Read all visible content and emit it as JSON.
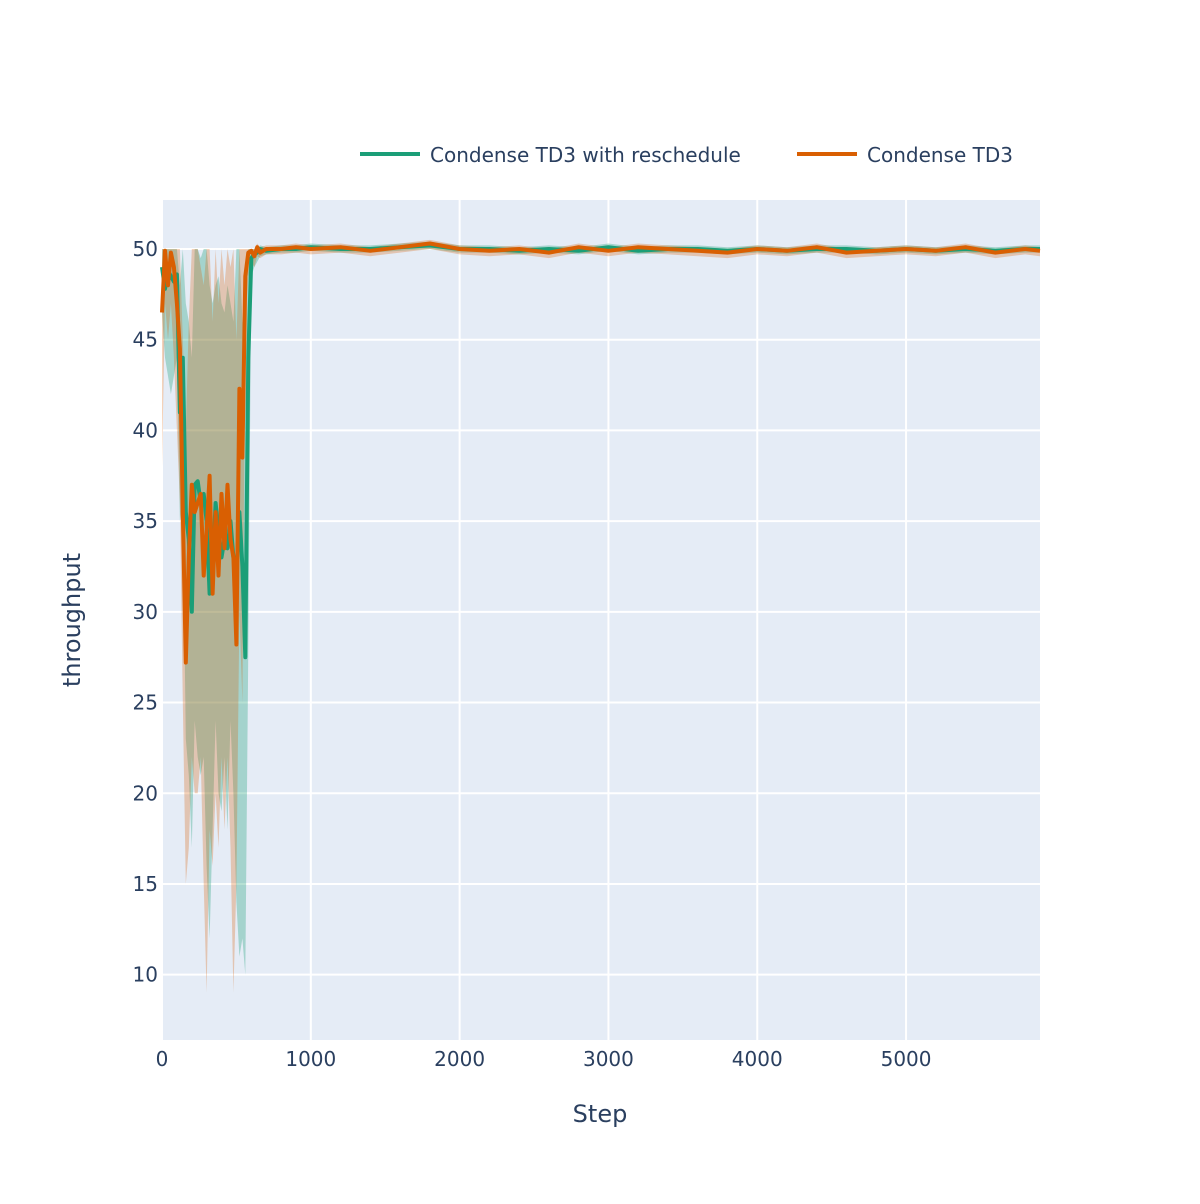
{
  "chart_data": {
    "type": "line",
    "title": "",
    "xlabel": "Step",
    "ylabel": "throughput",
    "xlim": [
      0,
      5900
    ],
    "ylim": [
      6.4,
      52.7
    ],
    "x_ticks": [
      0,
      1000,
      2000,
      3000,
      4000,
      5000
    ],
    "y_ticks": [
      10,
      15,
      20,
      25,
      30,
      35,
      40,
      45,
      50
    ],
    "grid": true,
    "legend_position": "top-right",
    "background_color": "#e5ecf6",
    "series": [
      {
        "name": "Condense TD3 with reschedule",
        "color": "#1b9e77",
        "band_color": "rgba(27,158,119,0.32)",
        "x": [
          0,
          20,
          40,
          60,
          80,
          100,
          120,
          140,
          160,
          180,
          200,
          220,
          240,
          260,
          280,
          300,
          320,
          340,
          360,
          380,
          400,
          420,
          440,
          460,
          480,
          500,
          520,
          540,
          560,
          580,
          600,
          620,
          640,
          660,
          700,
          800,
          900,
          1000,
          1200,
          1400,
          1600,
          1800,
          2000,
          2200,
          2400,
          2600,
          2800,
          3000,
          3200,
          3400,
          3600,
          3800,
          4000,
          4200,
          4400,
          4600,
          4800,
          5000,
          5200,
          5400,
          5600,
          5800,
          5900
        ],
        "mean": [
          49.0,
          47.8,
          48.8,
          48.5,
          48.2,
          48.6,
          41.0,
          44.0,
          35.5,
          34.0,
          30.0,
          37.0,
          37.2,
          36.0,
          36.5,
          35.0,
          31.0,
          32.5,
          36.0,
          34.5,
          33.0,
          34.0,
          33.5,
          35.0,
          33.0,
          32.0,
          35.5,
          32.5,
          27.5,
          44.0,
          49.5,
          49.7,
          49.8,
          50.0,
          49.9,
          50.0,
          50.0,
          50.1,
          50.0,
          50.0,
          50.1,
          50.2,
          50.0,
          50.0,
          49.9,
          50.0,
          49.9,
          50.1,
          49.9,
          50.0,
          50.0,
          49.9,
          50.0,
          49.9,
          50.0,
          50.0,
          49.9,
          50.0,
          49.9,
          50.0,
          49.9,
          50.0,
          50.0
        ],
        "lower": [
          46.5,
          44.0,
          43.0,
          42.0,
          43.0,
          44.0,
          35.0,
          36.0,
          23.0,
          21.0,
          17.0,
          24.0,
          22.0,
          21.0,
          22.0,
          16.0,
          12.0,
          18.0,
          24.0,
          20.0,
          19.0,
          22.0,
          18.0,
          24.0,
          20.0,
          14.0,
          11.0,
          12.0,
          10.0,
          28.0,
          48.5,
          49.0,
          49.3,
          49.6,
          49.7,
          49.8,
          49.8,
          49.9,
          49.8,
          49.8,
          49.9,
          50.0,
          49.8,
          49.8,
          49.7,
          49.8,
          49.7,
          49.9,
          49.7,
          49.8,
          49.8,
          49.7,
          49.8,
          49.7,
          49.8,
          49.8,
          49.7,
          49.8,
          49.7,
          49.8,
          49.7,
          49.8,
          49.8
        ],
        "upper": [
          50.0,
          50.0,
          50.0,
          50.0,
          50.0,
          50.0,
          48.0,
          50.0,
          47.0,
          46.0,
          44.0,
          50.0,
          50.0,
          49.5,
          50.0,
          50.0,
          48.0,
          47.0,
          48.0,
          48.5,
          47.0,
          46.5,
          48.0,
          47.0,
          46.0,
          50.0,
          50.0,
          46.0,
          45.0,
          50.0,
          50.0,
          50.0,
          50.0,
          50.2,
          50.1,
          50.2,
          50.2,
          50.3,
          50.2,
          50.2,
          50.3,
          50.4,
          50.2,
          50.2,
          50.1,
          50.2,
          50.1,
          50.3,
          50.1,
          50.2,
          50.2,
          50.1,
          50.2,
          50.1,
          50.2,
          50.2,
          50.1,
          50.2,
          50.1,
          50.2,
          50.1,
          50.2,
          50.2
        ]
      },
      {
        "name": "Condense TD3",
        "color": "#d95f02",
        "band_color": "rgba(217,95,2,0.28)",
        "x": [
          0,
          20,
          40,
          60,
          80,
          100,
          120,
          140,
          160,
          180,
          200,
          220,
          240,
          260,
          280,
          300,
          320,
          340,
          360,
          380,
          400,
          420,
          440,
          460,
          480,
          500,
          520,
          540,
          560,
          580,
          600,
          620,
          640,
          660,
          700,
          800,
          900,
          1000,
          1200,
          1400,
          1600,
          1800,
          2000,
          2200,
          2400,
          2600,
          2800,
          3000,
          3200,
          3400,
          3600,
          3800,
          4000,
          4200,
          4400,
          4600,
          4800,
          5000,
          5200,
          5400,
          5600,
          5800,
          5900
        ],
        "mean": [
          46.5,
          49.9,
          48.0,
          49.8,
          49.0,
          47.0,
          44.5,
          35.5,
          27.2,
          33.0,
          37.0,
          35.5,
          36.0,
          36.5,
          32.0,
          34.5,
          37.5,
          31.0,
          35.5,
          32.0,
          36.5,
          33.5,
          37.0,
          34.0,
          33.0,
          28.2,
          42.3,
          38.5,
          48.5,
          49.8,
          49.9,
          49.6,
          50.1,
          49.8,
          50.0,
          50.0,
          50.1,
          50.0,
          50.1,
          49.9,
          50.1,
          50.3,
          50.0,
          49.9,
          50.0,
          49.8,
          50.1,
          49.9,
          50.1,
          50.0,
          49.9,
          49.8,
          50.0,
          49.9,
          50.1,
          49.8,
          49.9,
          50.0,
          49.9,
          50.1,
          49.8,
          50.0,
          49.9
        ],
        "lower": [
          38.0,
          47.0,
          45.0,
          47.0,
          44.0,
          40.0,
          36.0,
          25.0,
          15.0,
          17.0,
          22.0,
          20.0,
          20.0,
          22.0,
          15.0,
          9.0,
          18.0,
          16.0,
          20.0,
          17.0,
          22.0,
          18.0,
          22.0,
          17.0,
          9.0,
          15.0,
          30.0,
          25.0,
          46.0,
          48.5,
          49.3,
          49.0,
          49.6,
          49.5,
          49.7,
          49.7,
          49.8,
          49.7,
          49.8,
          49.6,
          49.8,
          50.0,
          49.7,
          49.6,
          49.7,
          49.5,
          49.8,
          49.6,
          49.8,
          49.7,
          49.6,
          49.5,
          49.7,
          49.6,
          49.8,
          49.5,
          49.6,
          49.7,
          49.6,
          49.8,
          49.5,
          49.7,
          49.6
        ],
        "upper": [
          50.0,
          50.0,
          50.0,
          50.0,
          50.0,
          50.0,
          50.0,
          45.0,
          40.0,
          46.0,
          50.0,
          50.0,
          50.0,
          49.0,
          48.0,
          50.0,
          50.0,
          46.0,
          50.0,
          47.0,
          50.0,
          48.0,
          50.0,
          49.0,
          50.0,
          45.0,
          50.0,
          50.0,
          50.0,
          50.0,
          50.0,
          50.0,
          50.3,
          50.1,
          50.2,
          50.2,
          50.3,
          50.2,
          50.3,
          50.1,
          50.3,
          50.5,
          50.2,
          50.1,
          50.2,
          50.0,
          50.3,
          50.1,
          50.3,
          50.2,
          50.1,
          50.0,
          50.2,
          50.1,
          50.3,
          50.0,
          50.1,
          50.2,
          50.1,
          50.3,
          50.0,
          50.2,
          50.1
        ]
      }
    ]
  }
}
